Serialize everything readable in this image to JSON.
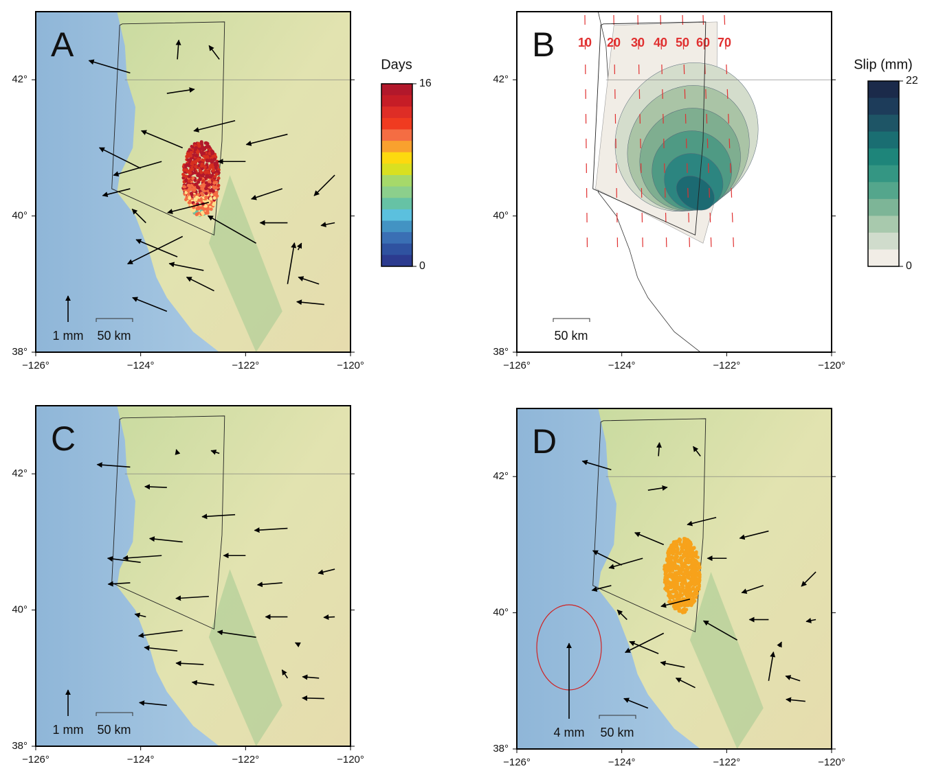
{
  "panels": [
    {
      "label": "A",
      "arrow_scale": "1 mm",
      "scale_bar": "50 km"
    },
    {
      "label": "B",
      "scale_bar": "50 km",
      "contour_labels": [
        "10",
        "20",
        "30",
        "40",
        "50",
        "60",
        "70"
      ]
    },
    {
      "label": "C",
      "arrow_scale": "1 mm",
      "scale_bar": "50 km"
    },
    {
      "label": "D",
      "arrow_scale": "4 mm",
      "scale_bar": "50 km"
    }
  ],
  "axes": {
    "x_labels": [
      "−126°",
      "−124°",
      "−122°",
      "−120°"
    ],
    "y_labels": [
      "38°",
      "40°",
      "42°"
    ]
  },
  "colorbars": [
    {
      "title": "Days",
      "max": "16",
      "min": "0"
    },
    {
      "title": "Slip (mm)",
      "max": "22",
      "min": "0"
    }
  ]
}
